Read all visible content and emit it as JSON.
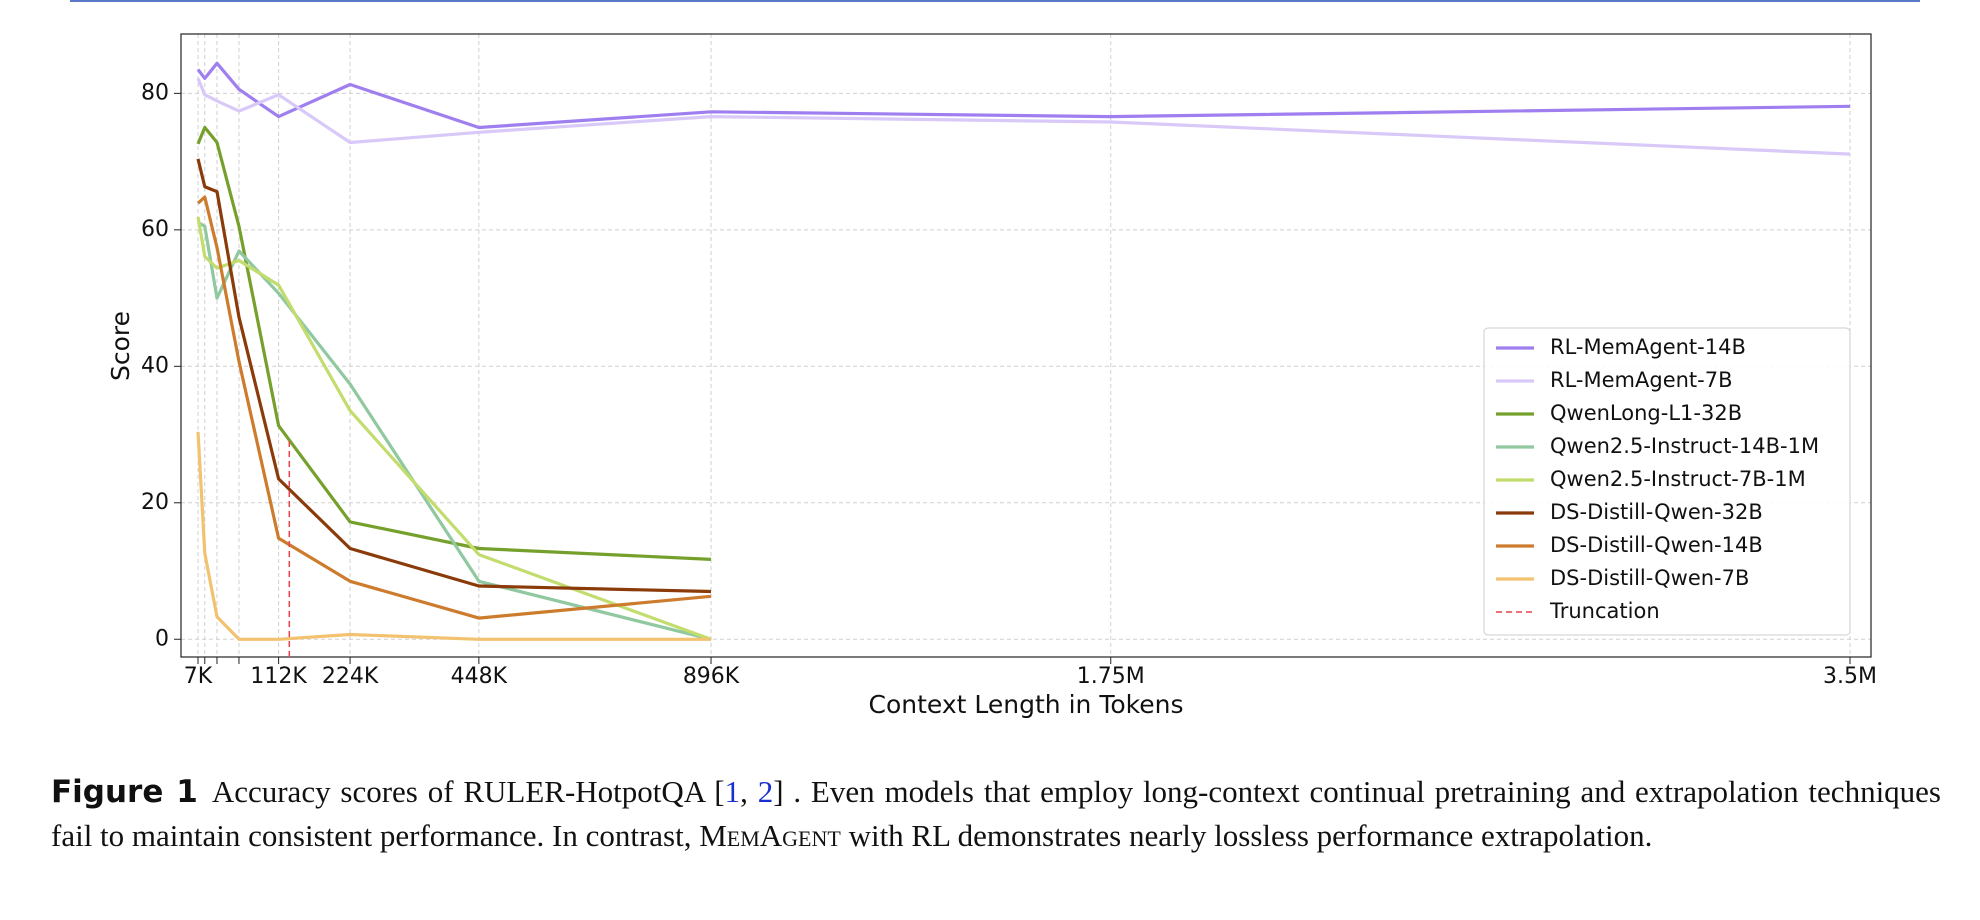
{
  "chart_data": {
    "type": "line",
    "xlabel": "Context Length in Tokens",
    "ylabel": "Score",
    "xlim": [
      7000,
      3500000
    ],
    "ylim": [
      -2.6,
      88.7
    ],
    "xticks": [
      {
        "value": 7000,
        "label": "7K"
      },
      {
        "value": 112000,
        "label": "112K"
      },
      {
        "value": 224000,
        "label": "224K"
      },
      {
        "value": 448000,
        "label": "448K"
      },
      {
        "value": 896000,
        "label": "896K"
      },
      {
        "value": 1750000,
        "label": "1.75M"
      },
      {
        "value": 3500000,
        "label": "3.5M"
      }
    ],
    "xminorticks": [
      14000,
      28000,
      56000
    ],
    "yticks": [
      0,
      20,
      40,
      60,
      80
    ],
    "grid": true,
    "legend": "lower right",
    "series": [
      {
        "name": "RL-MemAgent-14B",
        "color": "#9f7ff0",
        "x": [
          7000,
          14000,
          28000,
          56000,
          112000,
          224000,
          448000,
          896000,
          1750000,
          3500000
        ],
        "values": [
          83.5,
          82.2,
          84.4,
          80.6,
          76.6,
          81.3,
          75.0,
          77.3,
          76.6,
          78.1
        ]
      },
      {
        "name": "RL-MemAgent-7B",
        "color": "#d8c9f8",
        "x": [
          7000,
          14000,
          28000,
          56000,
          112000,
          224000,
          448000,
          896000,
          1750000,
          3500000
        ],
        "values": [
          82.2,
          79.8,
          78.9,
          77.4,
          79.8,
          72.8,
          74.3,
          76.6,
          75.8,
          71.1
        ]
      },
      {
        "name": "QwenLong-L1-32B",
        "color": "#76a02c",
        "x": [
          7000,
          14000,
          28000,
          56000,
          112000,
          224000,
          448000,
          896000
        ],
        "values": [
          72.6,
          75.0,
          72.8,
          60.5,
          31.3,
          17.2,
          13.3,
          11.7
        ]
      },
      {
        "name": "Qwen2.5-Instruct-14B-1M",
        "color": "#90c8a0",
        "x": [
          7000,
          14000,
          28000,
          56000,
          112000,
          224000,
          448000,
          896000
        ],
        "values": [
          61.1,
          60.5,
          50.0,
          56.9,
          50.7,
          37.4,
          8.5,
          0
        ]
      },
      {
        "name": "Qwen2.5-Instruct-7B-1M",
        "color": "#c2dc6e",
        "x": [
          7000,
          14000,
          28000,
          56000,
          112000,
          224000,
          448000,
          896000
        ],
        "values": [
          61.9,
          56.1,
          54.4,
          55.5,
          51.9,
          33.5,
          12.4,
          0
        ]
      },
      {
        "name": "DS-Distill-Qwen-32B",
        "color": "#8b3a0a",
        "x": [
          7000,
          14000,
          28000,
          56000,
          112000,
          224000,
          448000,
          896000
        ],
        "values": [
          70.4,
          66.3,
          65.6,
          47.2,
          23.5,
          13.3,
          7.8,
          7.0
        ]
      },
      {
        "name": "DS-Distill-Qwen-14B",
        "color": "#cd7b2c",
        "x": [
          7000,
          14000,
          28000,
          56000,
          112000,
          224000,
          448000,
          896000
        ],
        "values": [
          63.9,
          64.8,
          57.4,
          40.7,
          14.8,
          8.5,
          3.1,
          6.3
        ]
      },
      {
        "name": "DS-Distill-Qwen-7B",
        "color": "#f2c270",
        "x": [
          7000,
          14000,
          28000,
          56000,
          112000,
          224000,
          448000,
          896000
        ],
        "values": [
          30.4,
          12.6,
          3.3,
          0,
          0,
          0.7,
          0,
          0
        ]
      },
      {
        "name": "Truncation",
        "color": "#e8414c",
        "style": "dashed",
        "x": [
          128000,
          128000
        ],
        "values": [
          -2.6,
          29.3
        ]
      }
    ]
  },
  "caption": {
    "label": "Figure 1",
    "text1": "Accuracy scores of RULER-HotpotQA  [",
    "ref1": "1",
    "sep": ", ",
    "ref2": "2",
    "text2": "] . Even models that employ long-context continual pretraining and extrapolation techniques fail to maintain consistent performance. In contrast, ",
    "name": "MemAgent",
    "text3": " with RL demonstrates nearly lossless performance extrapolation."
  }
}
